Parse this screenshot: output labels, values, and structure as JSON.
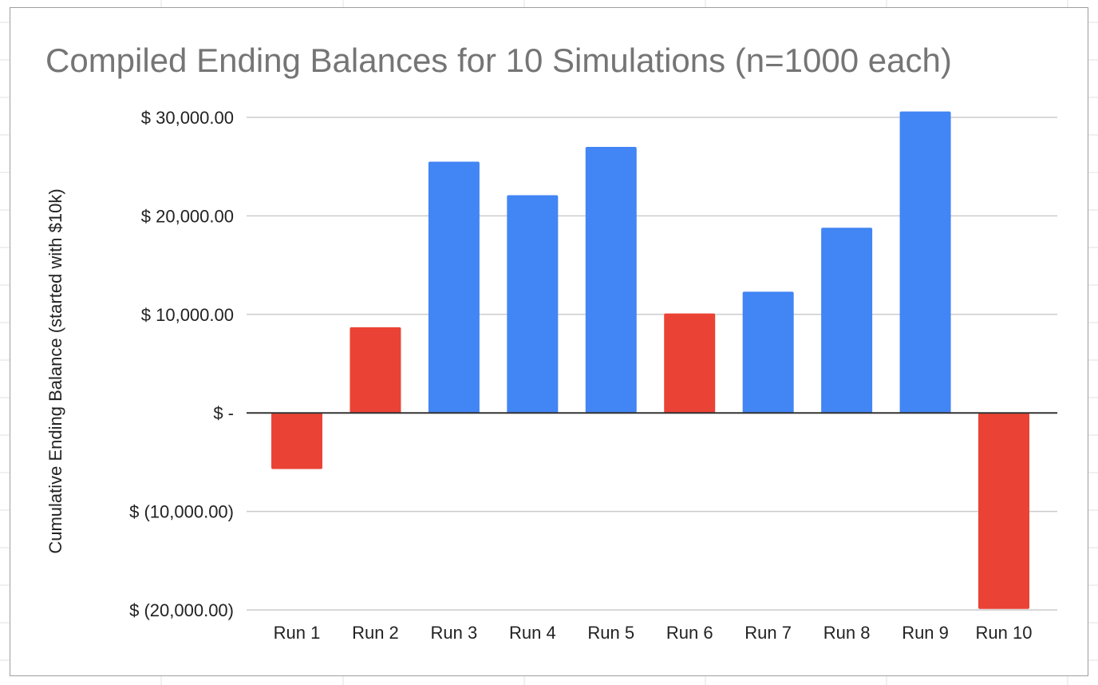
{
  "chart_data": {
    "type": "bar",
    "title": "Compiled Ending Balances for 10 Simulations (n=1000 each)",
    "xlabel": "",
    "ylabel": "Cumulative Ending Balance (started with $10k)",
    "categories": [
      "Run 1",
      "Run 2",
      "Run 3",
      "Run 4",
      "Run 5",
      "Run 6",
      "Run 7",
      "Run 8",
      "Run 9",
      "Run 10"
    ],
    "values": [
      -5700,
      8700,
      25500,
      22100,
      27000,
      10100,
      12300,
      18800,
      30600,
      -19900
    ],
    "bar_colors": [
      "#ea4335",
      "#ea4335",
      "#4285f4",
      "#4285f4",
      "#4285f4",
      "#ea4335",
      "#4285f4",
      "#4285f4",
      "#4285f4",
      "#ea4335"
    ],
    "ylim": [
      -20000,
      30000
    ],
    "yticks": [
      30000,
      20000,
      10000,
      0,
      -10000,
      -20000
    ],
    "ytick_labels": [
      "$ 30,000.00",
      "$ 20,000.00",
      "$ 10,000.00",
      "$ -",
      "$ (10,000.00)",
      "$ (20,000.00)"
    ],
    "grid": true,
    "legend": "none"
  },
  "colors": {
    "positive": "#4285f4",
    "negative": "#ea4335",
    "grid": "#cccccc",
    "zero_line": "#333333",
    "title": "#757575"
  }
}
